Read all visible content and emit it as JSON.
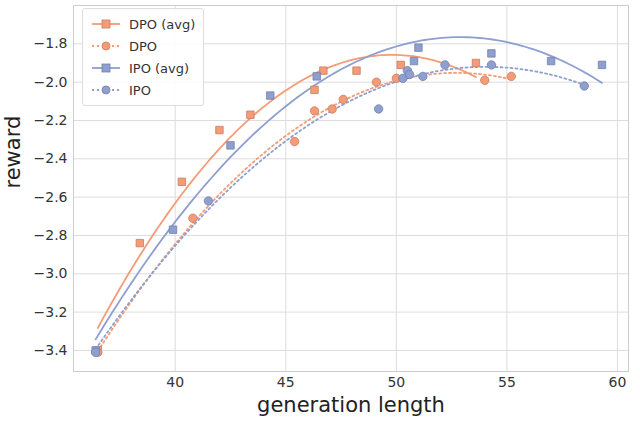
{
  "chart_data": {
    "type": "scatter",
    "x_label": "generation length",
    "y_label": "reward",
    "xlim": [
      35.4,
      60.5
    ],
    "ylim": [
      -3.51,
      -1.6
    ],
    "xticks": [
      40,
      45,
      50,
      55,
      60
    ],
    "yticks": [
      {
        "value": -3.4,
        "label": "−3.4"
      },
      {
        "value": -3.2,
        "label": "−3.2"
      },
      {
        "value": -3.0,
        "label": "−3.0"
      },
      {
        "value": -2.8,
        "label": "−2.8"
      },
      {
        "value": -2.6,
        "label": "−2.6"
      },
      {
        "value": -2.4,
        "label": "−2.4"
      },
      {
        "value": -2.2,
        "label": "−2.2"
      },
      {
        "value": -2.0,
        "label": "−2.0"
      },
      {
        "value": -1.8,
        "label": "−1.8"
      }
    ],
    "grid": true,
    "legend": "upper left",
    "series": [
      {
        "name": "DPO (avg)",
        "color": "#f59b77",
        "marker": "square",
        "line_style": "solid",
        "x": [
          36.5,
          38.4,
          40.3,
          42.0,
          43.4,
          46.3,
          46.7,
          48.2,
          50.2,
          53.6
        ],
        "values": [
          -3.4,
          -2.84,
          -2.52,
          -2.25,
          -2.17,
          -2.04,
          -1.94,
          -1.94,
          -1.91,
          -1.9
        ]
      },
      {
        "name": "DPO",
        "color": "#f59b77",
        "marker": "circle",
        "line_style": "dotted",
        "x": [
          36.5,
          40.8,
          45.4,
          46.3,
          47.1,
          47.6,
          49.1,
          50.0,
          54.0,
          55.2
        ],
        "values": [
          -3.41,
          -2.71,
          -2.31,
          -2.15,
          -2.14,
          -2.09,
          -2.0,
          -1.98,
          -1.99,
          -1.97
        ]
      },
      {
        "name": "IPO (avg)",
        "color": "#8e9fd0",
        "marker": "square",
        "line_style": "solid",
        "x": [
          36.4,
          39.9,
          42.5,
          44.3,
          46.4,
          50.8,
          51.0,
          54.3,
          57.0,
          59.3
        ],
        "values": [
          -3.4,
          -2.77,
          -2.33,
          -2.07,
          -1.97,
          -1.89,
          -1.82,
          -1.85,
          -1.89,
          -1.91
        ]
      },
      {
        "name": "IPO",
        "color": "#8e9fd0",
        "marker": "circle",
        "line_style": "dotted",
        "x": [
          36.4,
          41.5,
          49.2,
          50.3,
          50.5,
          50.6,
          51.2,
          52.2,
          54.3,
          58.5
        ],
        "values": [
          -3.41,
          -2.62,
          -2.14,
          -1.98,
          -1.94,
          -1.96,
          -1.97,
          -1.91,
          -1.91,
          -2.02
        ]
      }
    ]
  }
}
